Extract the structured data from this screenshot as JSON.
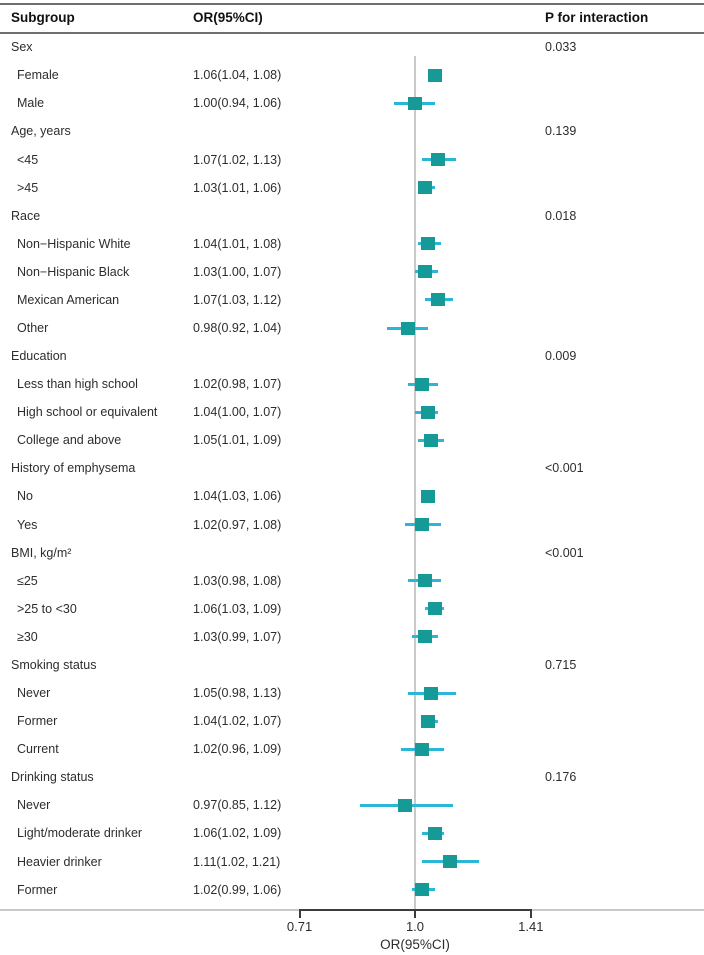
{
  "colors": {
    "marker": "#169a98",
    "ci_line": "#2bb6d8",
    "ref_line": "#c9c9c9",
    "light_rule": "#c9c9c9",
    "text": "#2d2d2d"
  },
  "chart_data": {
    "type": "forest",
    "scale": "log",
    "columns": {
      "subgroup": "Subgroup",
      "or": "OR(95%CI)",
      "p_interaction": "P for interaction"
    },
    "xlabel": "OR(95%CI)",
    "x_ticks": [
      {
        "value": 0.71,
        "label": "0.71"
      },
      {
        "value": 1.0,
        "label": "1.0"
      },
      {
        "value": 1.41,
        "label": "1.41"
      }
    ],
    "reference_value": 1.0,
    "rows": [
      {
        "type": "group",
        "label": "Sex",
        "p": "0.033"
      },
      {
        "type": "item",
        "label": "Female",
        "or_text": "1.06(1.04, 1.08)",
        "or": 1.06,
        "lo": 1.04,
        "hi": 1.08
      },
      {
        "type": "item",
        "label": "Male",
        "or_text": "1.00(0.94, 1.06)",
        "or": 1.0,
        "lo": 0.94,
        "hi": 1.06
      },
      {
        "type": "group",
        "label": "Age, years",
        "p": "0.139"
      },
      {
        "type": "item",
        "label": "<45",
        "or_text": "1.07(1.02, 1.13)",
        "or": 1.07,
        "lo": 1.02,
        "hi": 1.13
      },
      {
        "type": "item",
        "label": ">45",
        "or_text": "1.03(1.01, 1.06)",
        "or": 1.03,
        "lo": 1.01,
        "hi": 1.06
      },
      {
        "type": "group",
        "label": "Race",
        "p": "0.018"
      },
      {
        "type": "item",
        "label": "Non−Hispanic White",
        "or_text": "1.04(1.01, 1.08)",
        "or": 1.04,
        "lo": 1.01,
        "hi": 1.08
      },
      {
        "type": "item",
        "label": "Non−Hispanic Black",
        "or_text": "1.03(1.00, 1.07)",
        "or": 1.03,
        "lo": 1.0,
        "hi": 1.07
      },
      {
        "type": "item",
        "label": "Mexican American",
        "or_text": "1.07(1.03, 1.12)",
        "or": 1.07,
        "lo": 1.03,
        "hi": 1.12
      },
      {
        "type": "item",
        "label": "Other",
        "or_text": "0.98(0.92, 1.04)",
        "or": 0.98,
        "lo": 0.92,
        "hi": 1.04
      },
      {
        "type": "group",
        "label": "Education",
        "p": "0.009"
      },
      {
        "type": "item",
        "label": "Less than high school",
        "or_text": "1.02(0.98, 1.07)",
        "or": 1.02,
        "lo": 0.98,
        "hi": 1.07
      },
      {
        "type": "item",
        "label": "High school or equivalent",
        "or_text": "1.04(1.00, 1.07)",
        "or": 1.04,
        "lo": 1.0,
        "hi": 1.07
      },
      {
        "type": "item",
        "label": "College and above",
        "or_text": "1.05(1.01, 1.09)",
        "or": 1.05,
        "lo": 1.01,
        "hi": 1.09
      },
      {
        "type": "group",
        "label": "History of emphysema",
        "p": "<0.001"
      },
      {
        "type": "item",
        "label": "No",
        "or_text": "1.04(1.03, 1.06)",
        "or": 1.04,
        "lo": 1.03,
        "hi": 1.06
      },
      {
        "type": "item",
        "label": "Yes",
        "or_text": "1.02(0.97, 1.08)",
        "or": 1.02,
        "lo": 0.97,
        "hi": 1.08
      },
      {
        "type": "group",
        "label": "BMI, kg/m²",
        "p": "<0.001"
      },
      {
        "type": "item",
        "label": "≤25",
        "or_text": "1.03(0.98, 1.08)",
        "or": 1.03,
        "lo": 0.98,
        "hi": 1.08
      },
      {
        "type": "item",
        "label": ">25 to <30",
        "or_text": "1.06(1.03, 1.09)",
        "or": 1.06,
        "lo": 1.03,
        "hi": 1.09
      },
      {
        "type": "item",
        "label": "≥30",
        "or_text": "1.03(0.99, 1.07)",
        "or": 1.03,
        "lo": 0.99,
        "hi": 1.07
      },
      {
        "type": "group",
        "label": "Smoking status",
        "p": "0.715"
      },
      {
        "type": "item",
        "label": "Never",
        "or_text": "1.05(0.98, 1.13)",
        "or": 1.05,
        "lo": 0.98,
        "hi": 1.13
      },
      {
        "type": "item",
        "label": "Former",
        "or_text": "1.04(1.02, 1.07)",
        "or": 1.04,
        "lo": 1.02,
        "hi": 1.07
      },
      {
        "type": "item",
        "label": "Current",
        "or_text": "1.02(0.96, 1.09)",
        "or": 1.02,
        "lo": 0.96,
        "hi": 1.09
      },
      {
        "type": "group",
        "label": "Drinking status",
        "p": "0.176"
      },
      {
        "type": "item",
        "label": "Never",
        "or_text": "0.97(0.85, 1.12)",
        "or": 0.97,
        "lo": 0.85,
        "hi": 1.12
      },
      {
        "type": "item",
        "label": "Light/moderate drinker",
        "or_text": "1.06(1.02, 1.09)",
        "or": 1.06,
        "lo": 1.02,
        "hi": 1.09
      },
      {
        "type": "item",
        "label": "Heavier drinker",
        "or_text": "1.11(1.02, 1.21)",
        "or": 1.11,
        "lo": 1.02,
        "hi": 1.21
      },
      {
        "type": "item",
        "label": "Former",
        "or_text": "1.02(0.99, 1.06)",
        "or": 1.02,
        "lo": 0.99,
        "hi": 1.06
      }
    ]
  }
}
